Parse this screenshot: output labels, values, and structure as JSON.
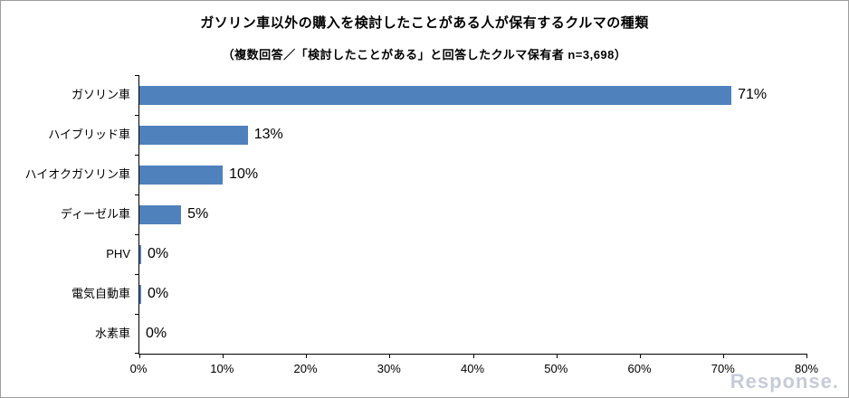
{
  "title": "ガソリン車以外の購入を検討したことがある人が保有するクルマの種類",
  "subtitle": "（複数回答／「検討したことがある」と回答したクルマ保有者 n=3,698）",
  "watermark": "Response.",
  "chart_data": {
    "type": "bar",
    "orientation": "horizontal",
    "title": "ガソリン車以外の購入を検討したことがある人が保有するクルマの種類",
    "subtitle": "（複数回答／「検討したことがある」と回答したクルマ保有者 n=3,698）",
    "categories": [
      "ガソリン車",
      "ハイブリッド車",
      "ハイオクガソリン車",
      "ディーゼル車",
      "PHV",
      "電気自動車",
      "水素車"
    ],
    "values": [
      71,
      13,
      10,
      5,
      0,
      0,
      0
    ],
    "value_labels": [
      "71%",
      "13%",
      "10%",
      "5%",
      "0%",
      "0%",
      "0%"
    ],
    "xlim": [
      0,
      80
    ],
    "x_ticks": [
      "0%",
      "10%",
      "20%",
      "30%",
      "40%",
      "50%",
      "60%",
      "70%",
      "80%"
    ],
    "bar_color": "#4f81bd",
    "sliver_rows": [
      4,
      5
    ],
    "grid": "off",
    "legend": "none"
  }
}
